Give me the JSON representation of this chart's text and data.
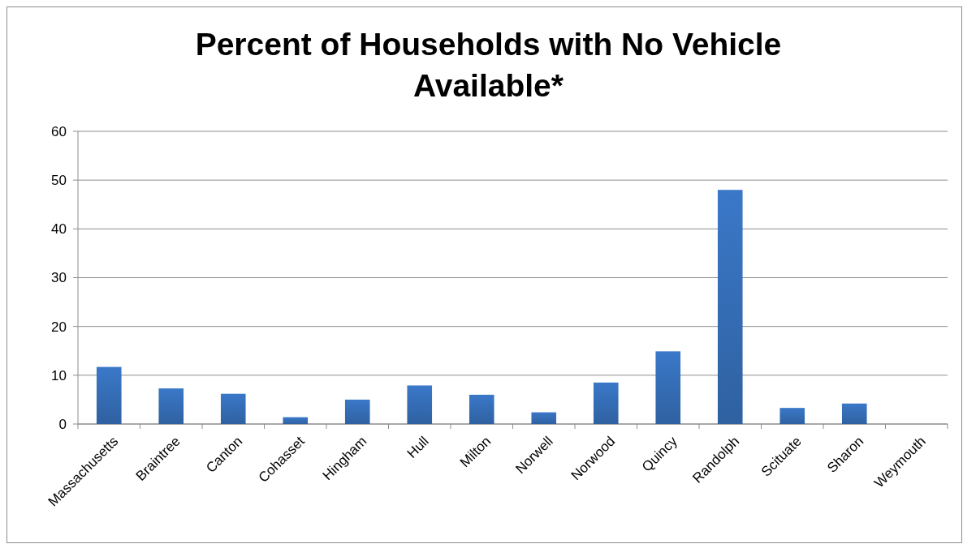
{
  "chart_data": {
    "type": "bar",
    "title": "Percent of Households with No Vehicle Available*",
    "categories": [
      "Massachusetts",
      "Braintree",
      "Canton",
      "Cohasset",
      "Hingham",
      "Hull",
      "Milton",
      "Norwell",
      "Norwood",
      "Quincy",
      "Randolph",
      "Scituate",
      "Sharon",
      "Weymouth"
    ],
    "values": [
      11.7,
      7.3,
      6.2,
      1.4,
      5.0,
      7.9,
      6.0,
      2.4,
      8.5,
      14.9,
      48.0,
      3.3,
      4.2,
      null
    ],
    "color": "#3a78c8",
    "ylim": [
      0,
      60
    ],
    "yticks": [
      0,
      10,
      20,
      30,
      40,
      50,
      60
    ],
    "grid": "y"
  }
}
